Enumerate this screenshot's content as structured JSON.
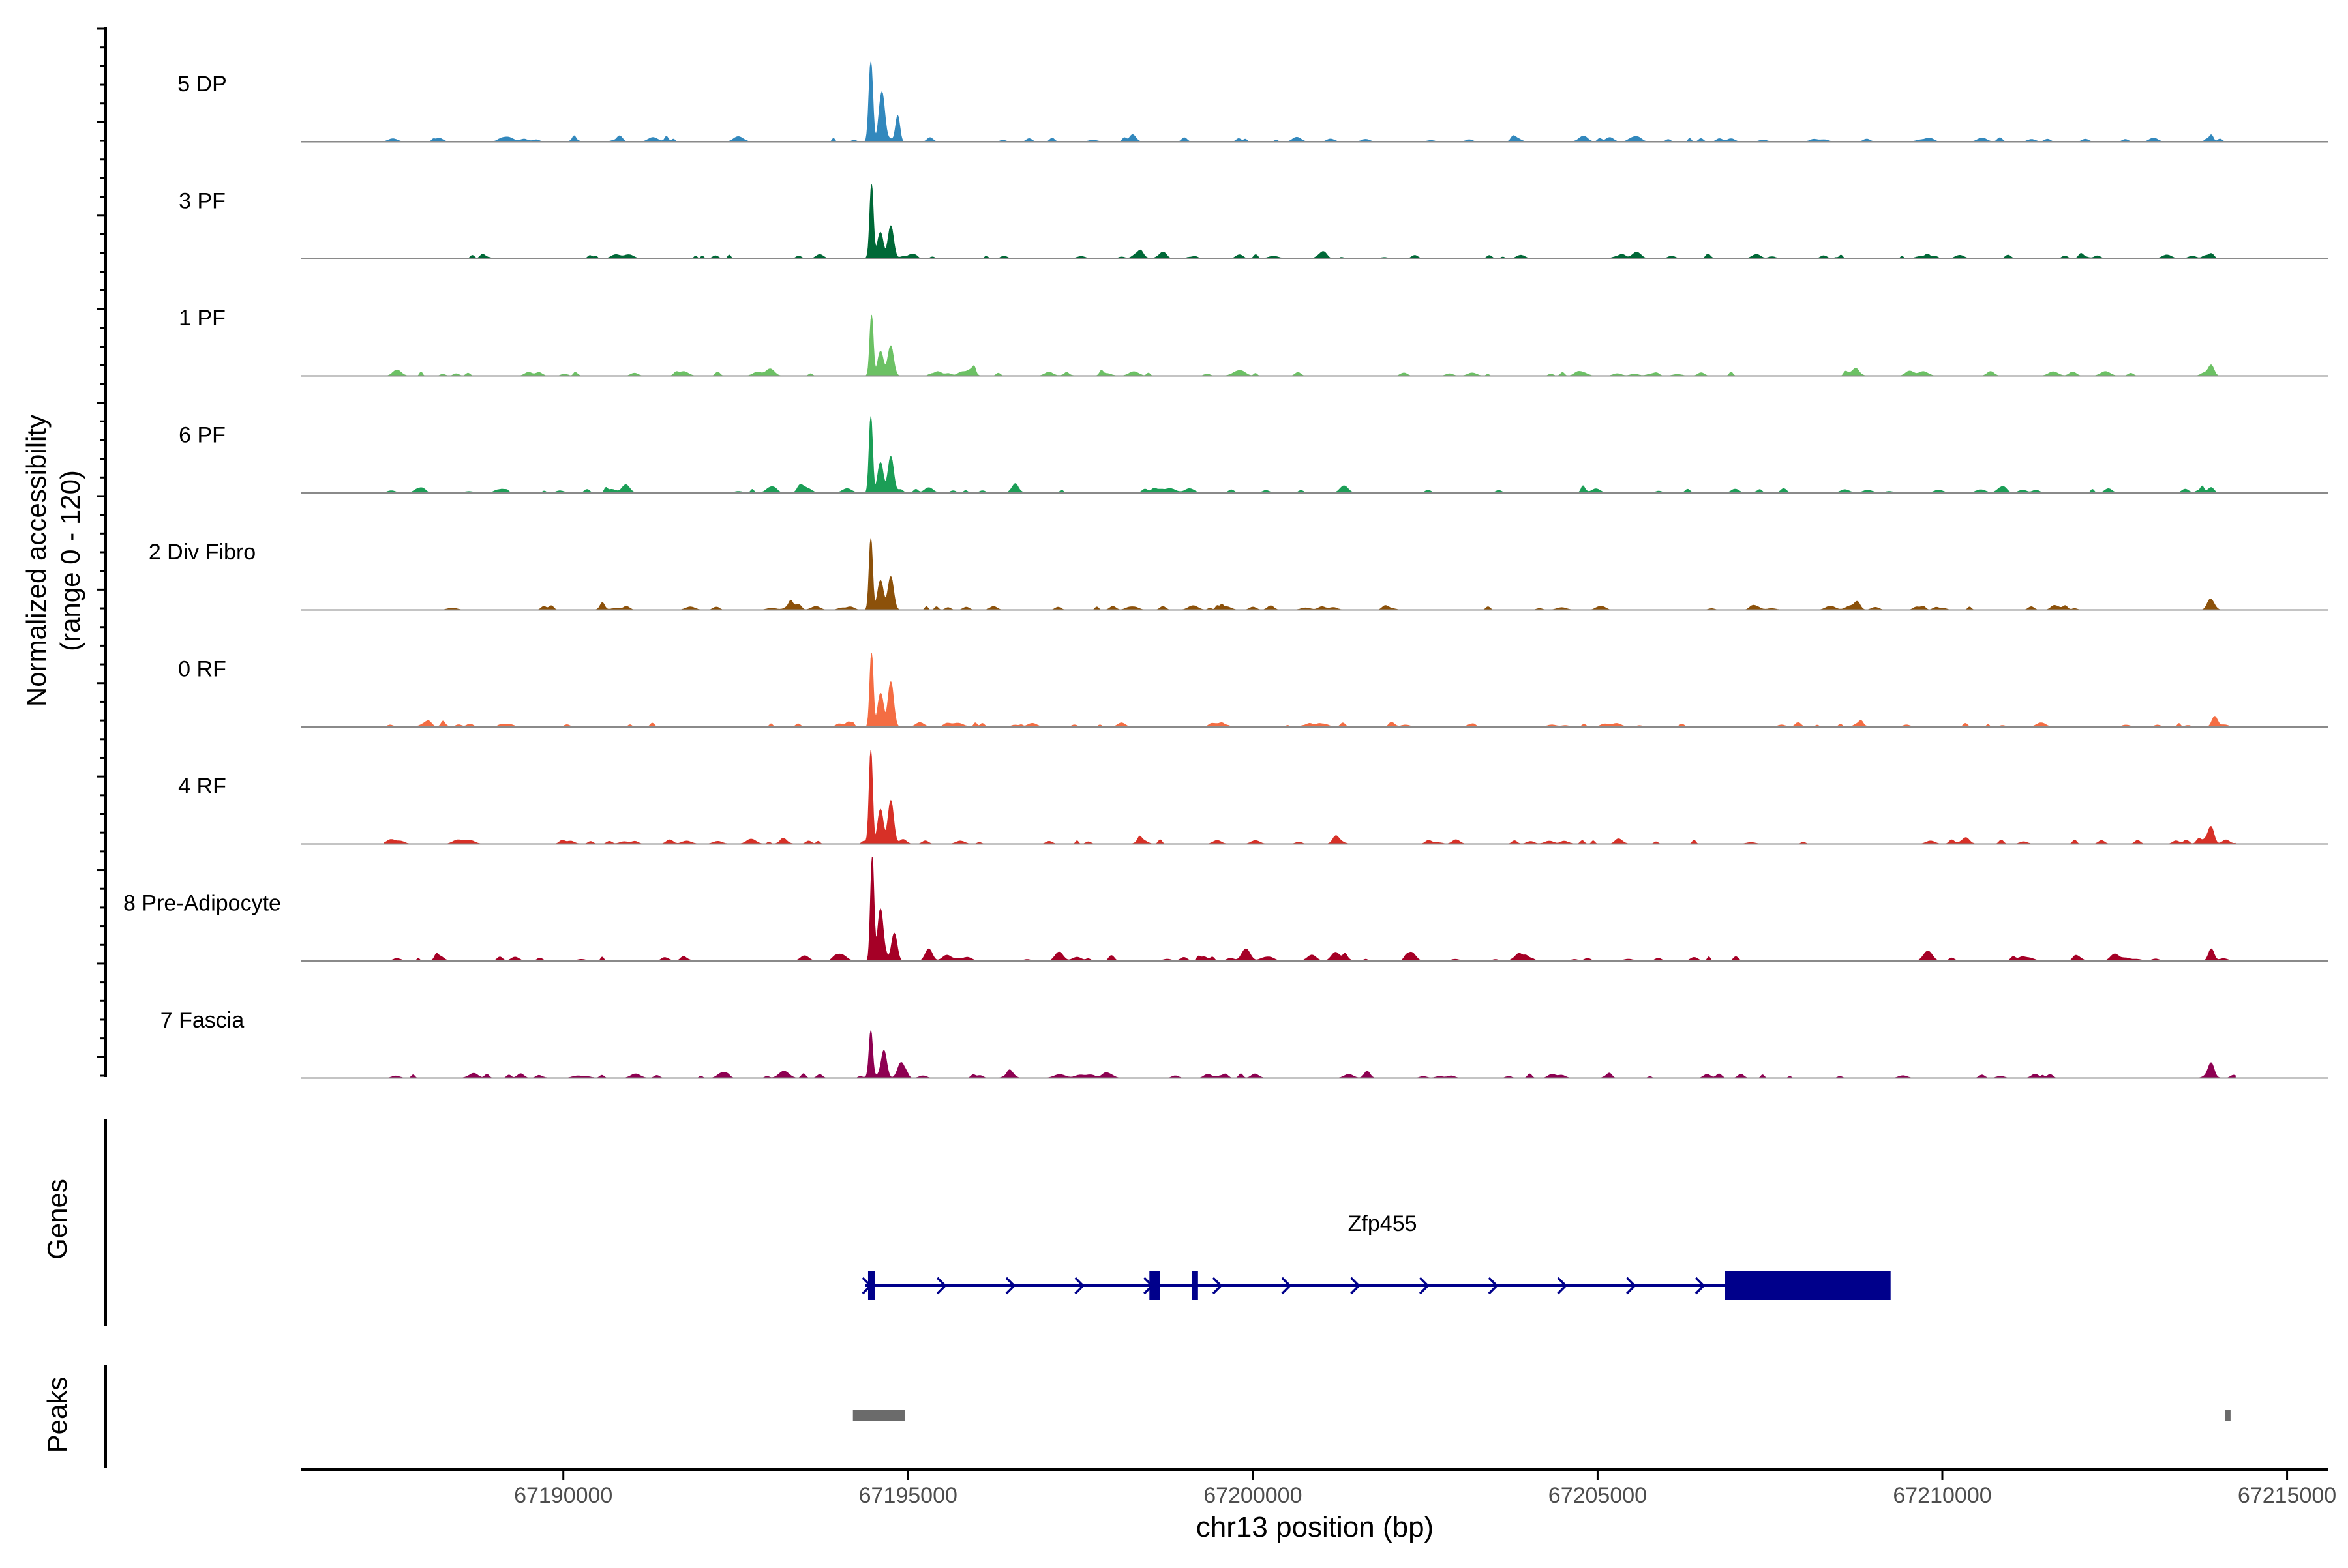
{
  "chart_data": {
    "type": "area",
    "title": "",
    "ylabel_line1": "Normalized accessibility",
    "ylabel_line2": "(range 0 - 120)",
    "xlabel": "chr13 position (bp)",
    "xlim": [
      67186200,
      67215600
    ],
    "ylim": [
      0,
      120
    ],
    "x_ticks": [
      67190000,
      67195000,
      67200000,
      67205000,
      67210000,
      67215000
    ],
    "x_tick_labels": [
      "67190000",
      "67195000",
      "67200000",
      "67205000",
      "67210000",
      "67215000"
    ],
    "series": [
      {
        "name": "5 DP",
        "color": "#3288BD",
        "peaks": [
          [
            67194460,
            92,
            28
          ],
          [
            67194620,
            55,
            40
          ],
          [
            67194850,
            30,
            30
          ],
          [
            67191300,
            5,
            70
          ],
          [
            67205500,
            4,
            60
          ],
          [
            67213900,
            8,
            30
          ]
        ]
      },
      {
        "name": "3 PF",
        "color": "#006837",
        "peaks": [
          [
            67194470,
            80,
            25
          ],
          [
            67194750,
            38,
            40
          ],
          [
            67194600,
            30,
            40
          ],
          [
            67213900,
            6,
            40
          ],
          [
            67200300,
            3,
            80
          ]
        ]
      },
      {
        "name": "1 PF",
        "color": "#6CC164",
        "peaks": [
          [
            67194470,
            70,
            25
          ],
          [
            67194750,
            32,
            40
          ],
          [
            67194600,
            28,
            40
          ],
          [
            67193000,
            8,
            60
          ],
          [
            67213900,
            12,
            40
          ],
          [
            67210700,
            5,
            50
          ]
        ]
      },
      {
        "name": "6 PF",
        "color": "#1B9E56",
        "peaks": [
          [
            67194460,
            88,
            25
          ],
          [
            67194750,
            42,
            40
          ],
          [
            67194600,
            35,
            40
          ],
          [
            67195300,
            6,
            60
          ],
          [
            67187900,
            5,
            60
          ],
          [
            67193000,
            6,
            60
          ],
          [
            67198800,
            5,
            80
          ],
          [
            67213900,
            6,
            40
          ]
        ]
      },
      {
        "name": "2 Div Fibro",
        "color": "#8C510A",
        "peaks": [
          [
            67194460,
            82,
            25
          ],
          [
            67194750,
            38,
            40
          ],
          [
            67194600,
            30,
            40
          ],
          [
            67213900,
            10,
            50
          ],
          [
            67193300,
            5,
            70
          ]
        ]
      },
      {
        "name": "0 RF",
        "color": "#F46D43",
        "peaks": [
          [
            67194470,
            85,
            25
          ],
          [
            67194750,
            52,
            40
          ],
          [
            67194600,
            38,
            40
          ],
          [
            67213950,
            12,
            40
          ],
          [
            67188000,
            4,
            70
          ]
        ]
      },
      {
        "name": "4 RF",
        "color": "#D73027",
        "peaks": [
          [
            67194460,
            108,
            25
          ],
          [
            67194750,
            50,
            40
          ],
          [
            67194600,
            40,
            40
          ],
          [
            67213900,
            16,
            40
          ],
          [
            67201200,
            6,
            40
          ],
          [
            67187500,
            5,
            60
          ]
        ]
      },
      {
        "name": "8 Pre-Adipocyte",
        "color": "#A50026",
        "peaks": [
          [
            67194480,
            120,
            25
          ],
          [
            67194600,
            60,
            40
          ],
          [
            67194800,
            32,
            40
          ],
          [
            67195300,
            14,
            50
          ],
          [
            67188200,
            6,
            60
          ],
          [
            67193500,
            6,
            60
          ],
          [
            67199900,
            14,
            60
          ],
          [
            67201200,
            10,
            60
          ],
          [
            67202300,
            10,
            60
          ],
          [
            67209800,
            10,
            60
          ],
          [
            67212500,
            8,
            60
          ],
          [
            67213900,
            14,
            40
          ]
        ]
      },
      {
        "name": "7 Fascia",
        "color": "#8E0152",
        "peaks": [
          [
            67194460,
            52,
            25
          ],
          [
            67194650,
            30,
            40
          ],
          [
            67194900,
            18,
            50
          ],
          [
            67193200,
            8,
            70
          ],
          [
            67192300,
            6,
            60
          ],
          [
            67213900,
            14,
            40
          ],
          [
            67197200,
            4,
            80
          ]
        ]
      }
    ],
    "genes_track_label": "Genes",
    "gene": {
      "name": "Zfp455",
      "color": "#00008B",
      "start": 67194380,
      "end": 67209380,
      "exons": [
        [
          67194420,
          67194520,
          "thin"
        ],
        [
          67198500,
          67198650,
          "thin"
        ],
        [
          67199120,
          67199200,
          "thin"
        ],
        [
          67206850,
          67209250,
          "thick"
        ]
      ]
    },
    "peaks_track_label": "Peaks",
    "peak_regions": [
      [
        67194200,
        67194950
      ],
      [
        67214100,
        67214180
      ]
    ]
  }
}
